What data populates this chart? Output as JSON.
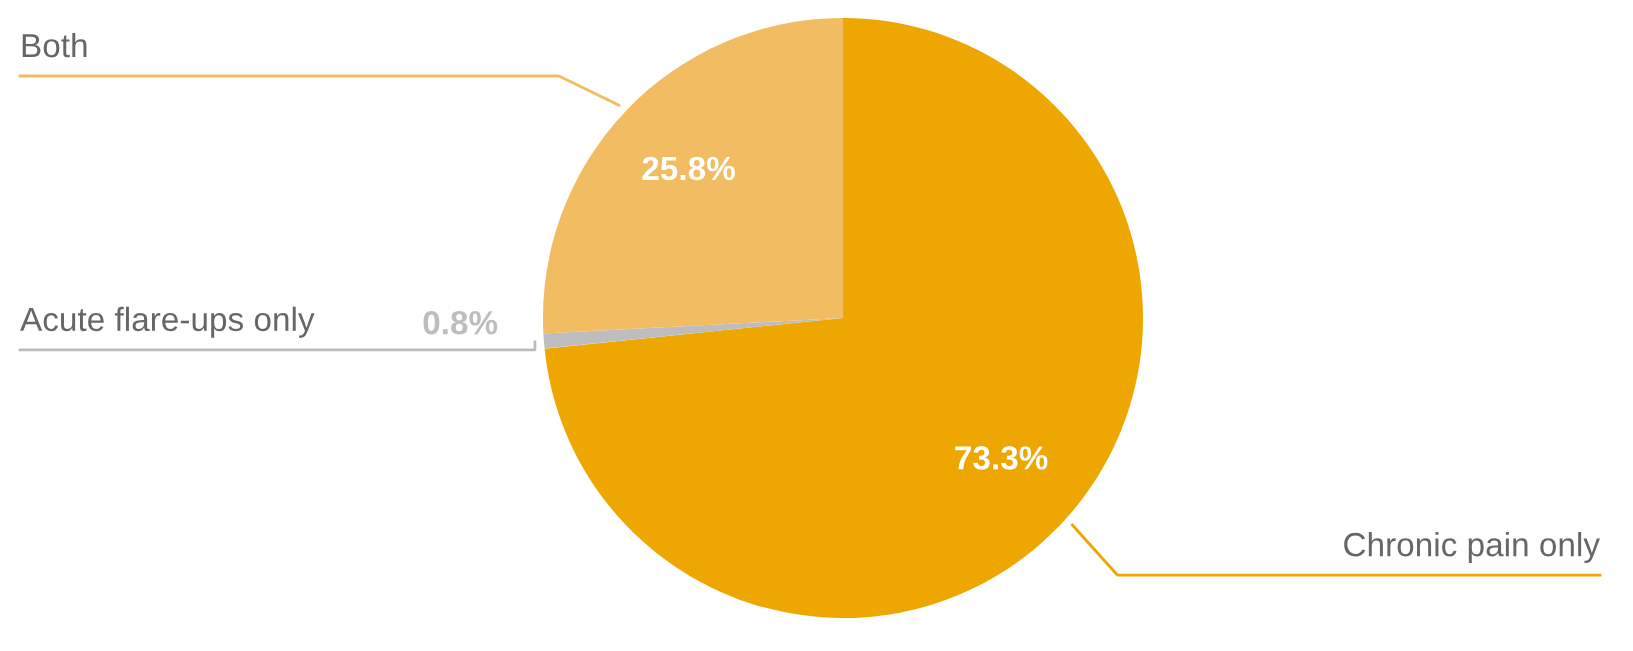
{
  "chart_data": {
    "type": "pie",
    "categories": [
      "Chronic pain only",
      "Acute flare-ups only",
      "Both"
    ],
    "values": [
      73.3,
      0.8,
      25.8
    ],
    "colors": [
      "#eea600",
      "#bdbdc0",
      "#f2bd62"
    ],
    "value_labels": [
      "73.3%",
      "0.8%",
      "25.8%"
    ]
  }
}
